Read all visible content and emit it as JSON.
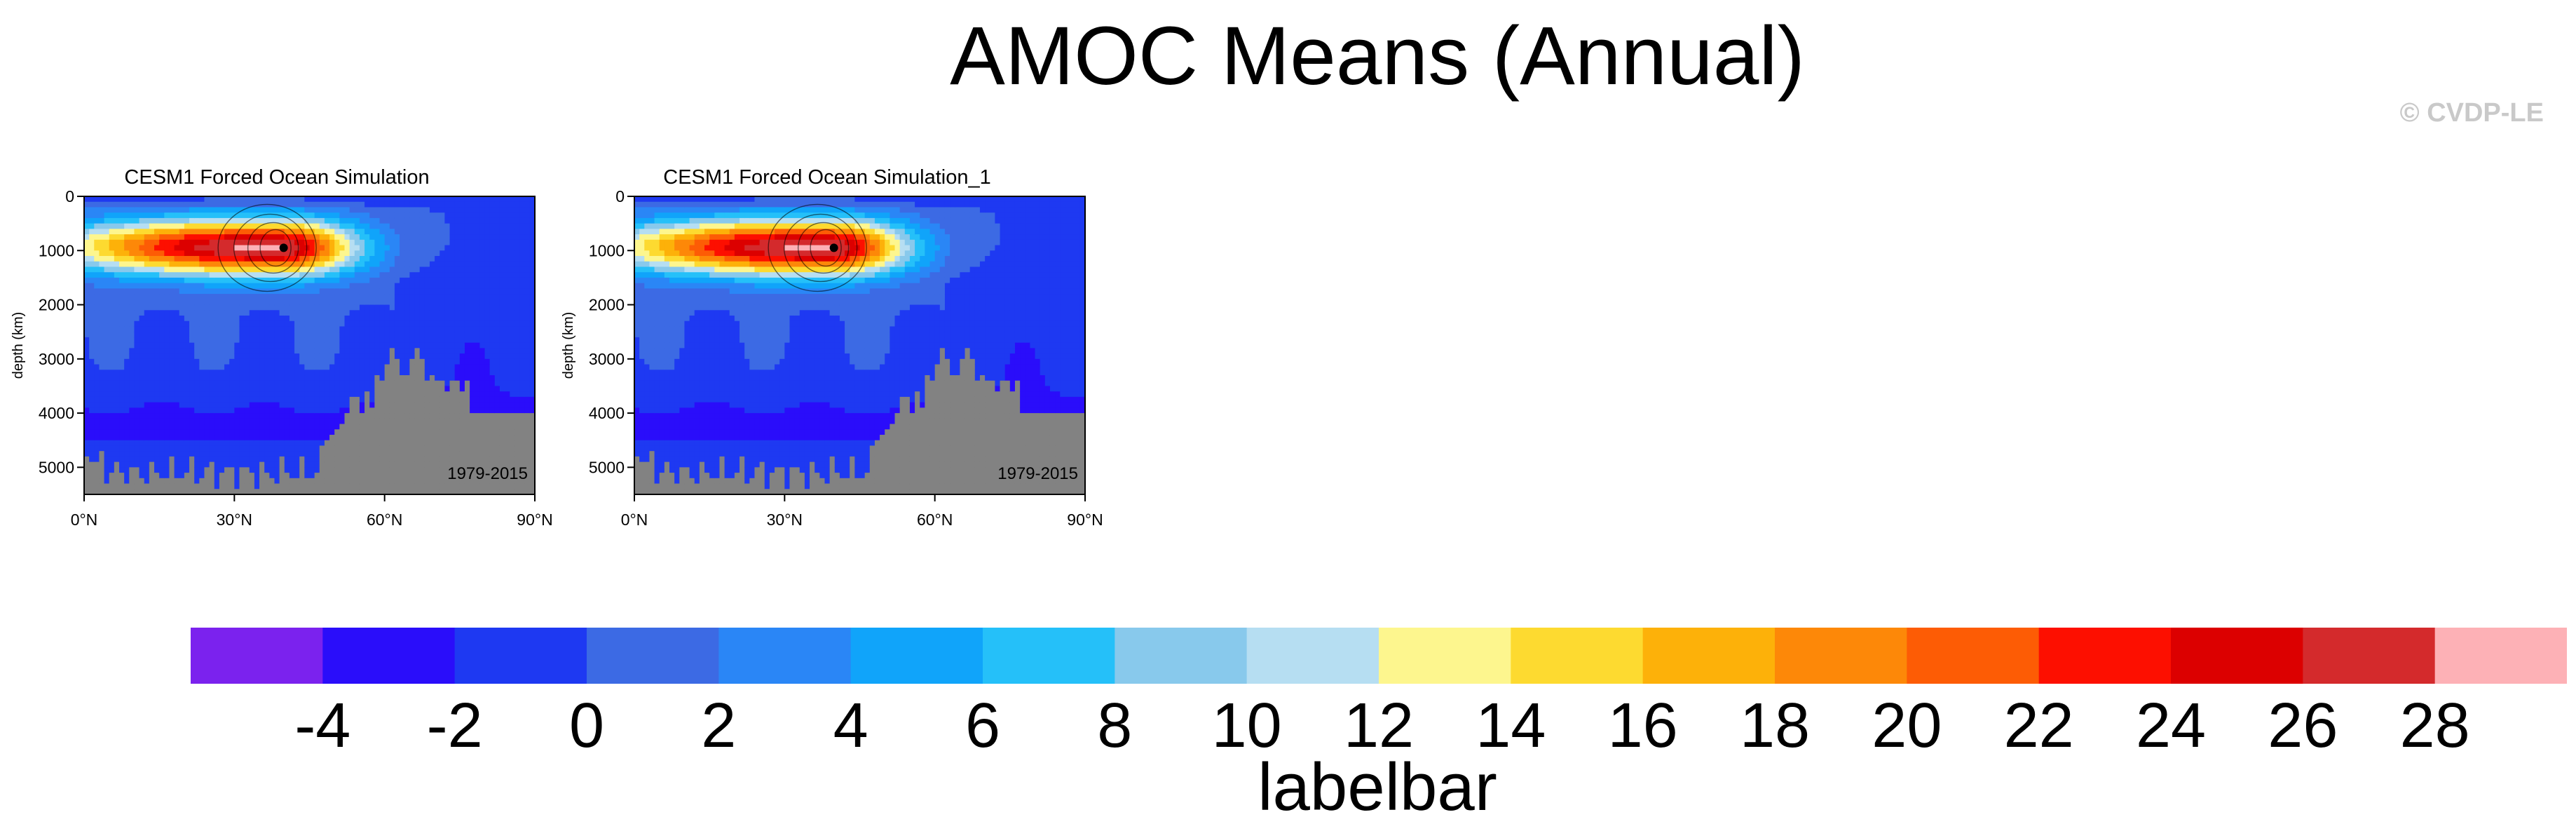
{
  "page": {
    "title": "AMOC Means (Annual)",
    "copyright": "© CVDP-LE"
  },
  "chart_data": [
    {
      "type": "heatmap",
      "title": "CESM1 Forced Ocean Simulation",
      "ylabel": "depth (km)",
      "period_label": "1979-2015",
      "x_tick_labels": [
        "0°N",
        "30°N",
        "60°N",
        "90°N"
      ],
      "y_tick_labels": [
        "0",
        "1000",
        "2000",
        "3000",
        "4000",
        "5000"
      ],
      "xlim": [
        0,
        90
      ],
      "ylim": [
        5500,
        0
      ],
      "x_ticks": [
        0,
        30,
        60,
        90
      ],
      "y_ticks": [
        0,
        1000,
        2000,
        3000,
        4000,
        5000
      ],
      "max_cell_lat": 39,
      "max_cell_depth": 950,
      "max_value": 27
    },
    {
      "type": "heatmap",
      "title": "CESM1 Forced Ocean Simulation_1",
      "ylabel": "depth (km)",
      "period_label": "1979-2015",
      "x_tick_labels": [
        "0°N",
        "30°N",
        "60°N",
        "90°N"
      ],
      "y_tick_labels": [
        "0",
        "1000",
        "2000",
        "3000",
        "4000",
        "5000"
      ],
      "xlim": [
        0,
        90
      ],
      "ylim": [
        5500,
        0
      ],
      "x_ticks": [
        0,
        30,
        60,
        90
      ],
      "y_ticks": [
        0,
        1000,
        2000,
        3000,
        4000,
        5000
      ],
      "max_cell_lat": 39,
      "max_cell_depth": 950,
      "max_value": 27
    }
  ],
  "labelbar": {
    "title": "labelbar",
    "tick_labels": [
      "-4",
      "-2",
      "0",
      "2",
      "4",
      "6",
      "8",
      "10",
      "12",
      "14",
      "16",
      "18",
      "20",
      "22",
      "24",
      "26",
      "28"
    ],
    "colors": [
      "#7b22ee",
      "#2a0dfa",
      "#1e39f2",
      "#3c6ae4",
      "#2a86f6",
      "#10a4fa",
      "#25c0f9",
      "#88c9ec",
      "#b6def2",
      "#fdf68e",
      "#fdda30",
      "#fdb109",
      "#fd8808",
      "#fd5c05",
      "#fd0f00",
      "#dc0000",
      "#d42a2c",
      "#fdb1b6"
    ]
  },
  "land_color": "#828282"
}
